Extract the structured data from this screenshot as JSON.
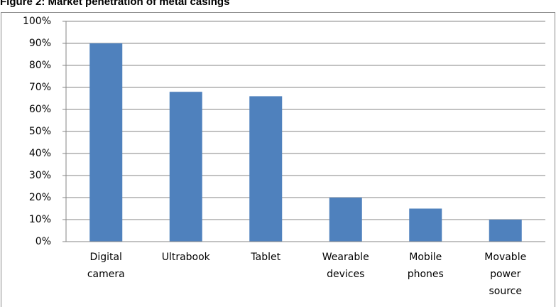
{
  "chart_data": {
    "type": "bar",
    "title": "Figure 2: Market penetration of metal casings",
    "categories": [
      "Digital camera",
      "Ultrabook",
      "Tablet",
      "Wearable devices",
      "Mobile phones",
      "Movable power source"
    ],
    "values": [
      90,
      68,
      66,
      20,
      15,
      10
    ],
    "color": "#4f81bd",
    "ylim": [
      0,
      100
    ],
    "yticks": [
      {
        "value": 0,
        "label": "0%"
      },
      {
        "value": 10,
        "label": "10%"
      },
      {
        "value": 20,
        "label": "20%"
      },
      {
        "value": 30,
        "label": "30%"
      },
      {
        "value": 40,
        "label": "40%"
      },
      {
        "value": 50,
        "label": "50%"
      },
      {
        "value": 60,
        "label": "60%"
      },
      {
        "value": 70,
        "label": "70%"
      },
      {
        "value": 80,
        "label": "80%"
      },
      {
        "value": 90,
        "label": "90%"
      },
      {
        "value": 100,
        "label": "100%"
      }
    ],
    "grid": true
  }
}
